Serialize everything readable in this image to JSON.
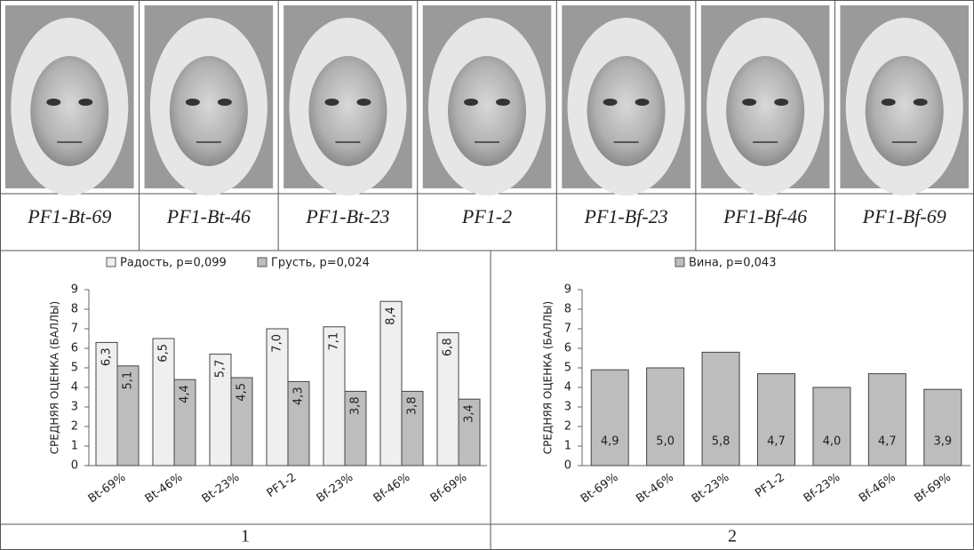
{
  "photos": {
    "captions": [
      "PF1-Bt-69",
      "PF1-Bt-46",
      "PF1-Bt-23",
      "PF1-2",
      "PF1-Bf-23",
      "PF1-Bf-46",
      "PF1-Bf-69"
    ]
  },
  "panel_labels": [
    "1",
    "2"
  ],
  "chart_data": [
    {
      "type": "bar",
      "ylabel": "СРЕДНЯЯ ОЦЕНКА (БАЛЛЫ)",
      "categories": [
        "Bt-69%",
        "Bt-46%",
        "Bt-23%",
        "PF1-2",
        "Bf-23%",
        "Bf-46%",
        "Bf-69%"
      ],
      "series": [
        {
          "name": "Радость, p=0,099",
          "color": "#efefef",
          "values": [
            6.3,
            6.5,
            5.7,
            7.0,
            7.1,
            8.4,
            6.8
          ],
          "value_labels": [
            "6,3",
            "6,5",
            "5,7",
            "7,0",
            "7,1",
            "8,4",
            "6,8"
          ]
        },
        {
          "name": "Грусть, p=0,024",
          "color": "#bdbdbd",
          "values": [
            5.1,
            4.4,
            4.5,
            4.3,
            3.8,
            3.8,
            3.4
          ],
          "value_labels": [
            "5,1",
            "4,4",
            "4,5",
            "4,3",
            "3,8",
            "3,8",
            "3,4"
          ]
        }
      ],
      "ylim": [
        0,
        9
      ],
      "yticks": [
        0,
        1,
        2,
        3,
        4,
        5,
        6,
        7,
        8,
        9
      ],
      "legend": "top"
    },
    {
      "type": "bar",
      "ylabel": "СРЕДНЯЯ ОЦЕНКА (БАЛЛЫ)",
      "categories": [
        "Bt-69%",
        "Bt-46%",
        "Bt-23%",
        "PF1-2",
        "Bf-23%",
        "Bf-46%",
        "Bf-69%"
      ],
      "series": [
        {
          "name": "Вина, p=0,043",
          "color": "#bdbdbd",
          "values": [
            4.9,
            5.0,
            5.8,
            4.7,
            4.0,
            4.7,
            3.9
          ],
          "value_labels": [
            "4,9",
            "5,0",
            "5,8",
            "4,7",
            "4,0",
            "4,7",
            "3,9"
          ]
        }
      ],
      "ylim": [
        0,
        9
      ],
      "yticks": [
        0,
        1,
        2,
        3,
        4,
        5,
        6,
        7,
        8,
        9
      ],
      "legend": "top"
    }
  ]
}
